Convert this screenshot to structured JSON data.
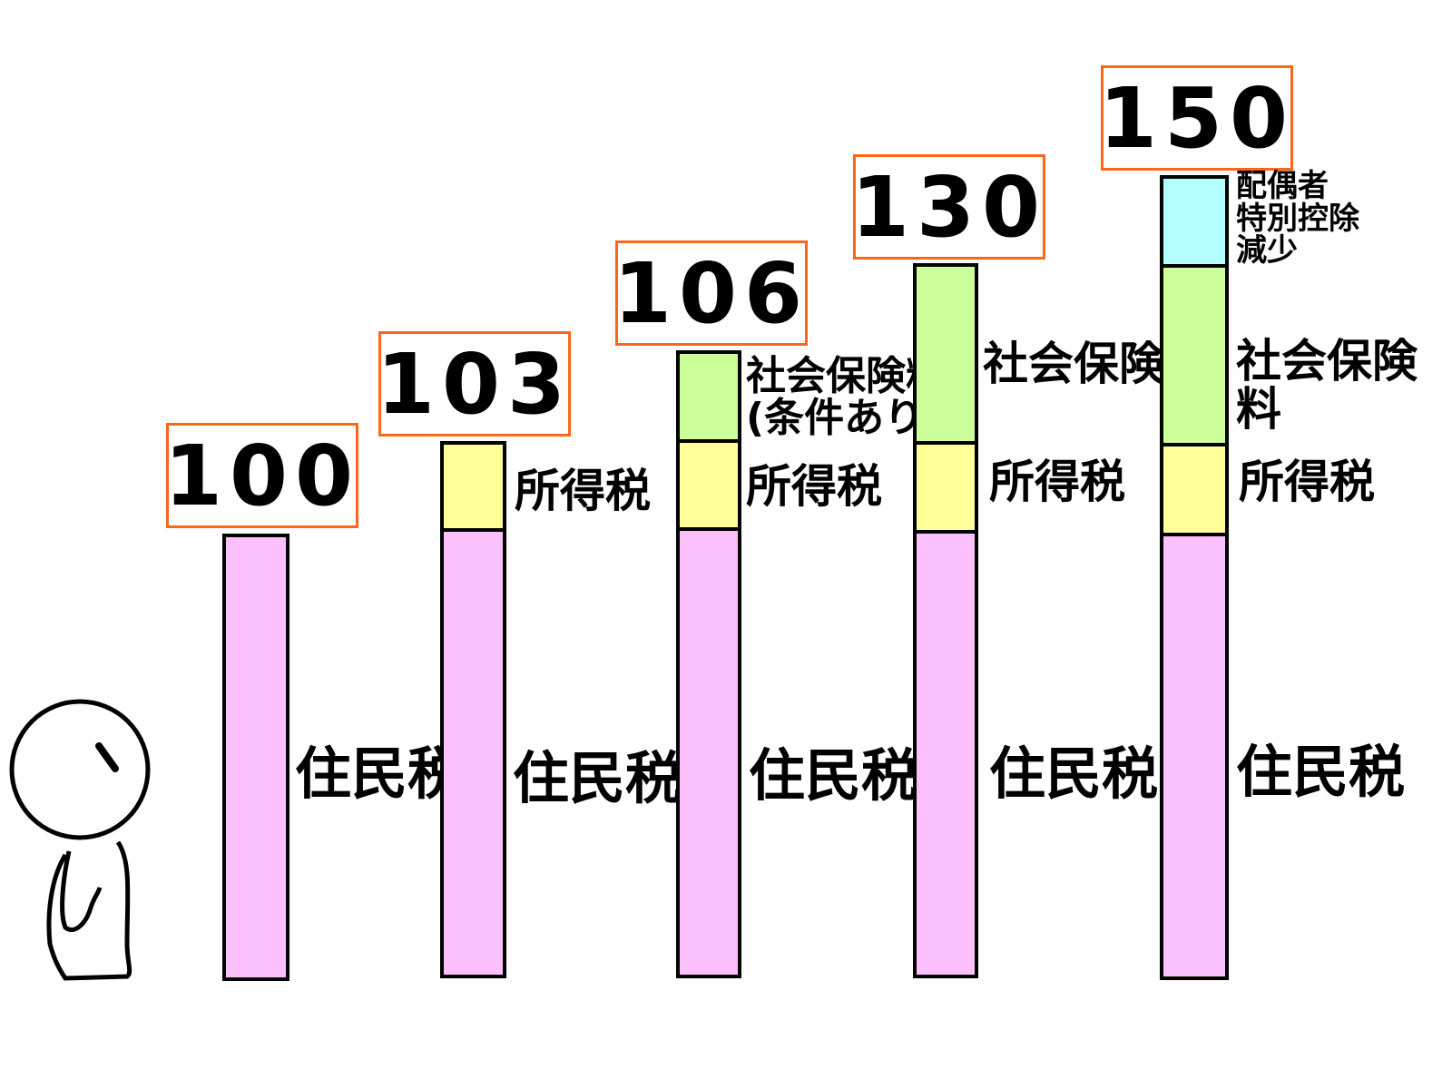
{
  "chart_data": {
    "type": "bar",
    "title": "",
    "categories": [
      "100",
      "103",
      "106",
      "130",
      "150"
    ],
    "bars": [
      {
        "label": "100",
        "segments": [
          {
            "name": "住民税",
            "color": "#fcc0fc"
          }
        ]
      },
      {
        "label": "103",
        "segments": [
          {
            "name": "住民税",
            "color": "#fcc0fc"
          },
          {
            "name": "所得税",
            "color": "#ffff99"
          }
        ]
      },
      {
        "label": "106",
        "segments": [
          {
            "name": "住民税",
            "color": "#fcc0fc"
          },
          {
            "name": "所得税",
            "color": "#ffff99"
          },
          {
            "name": "社会保険料\n(条件あり)",
            "color": "#ccff99"
          }
        ]
      },
      {
        "label": "130",
        "segments": [
          {
            "name": "住民税",
            "color": "#fcc0fc"
          },
          {
            "name": "所得税",
            "color": "#ffff99"
          },
          {
            "name": "社会保険料",
            "color": "#ccff99"
          }
        ]
      },
      {
        "label": "150",
        "segments": [
          {
            "name": "住民税",
            "color": "#fcc0fc"
          },
          {
            "name": "所得税",
            "color": "#ffff99"
          },
          {
            "name": "社会保険料",
            "color": "#ccff99"
          },
          {
            "name": "配偶者\n特別控除\n減少",
            "color": "#b3ffff"
          }
        ]
      }
    ],
    "label_border_color": "#ff6619"
  }
}
